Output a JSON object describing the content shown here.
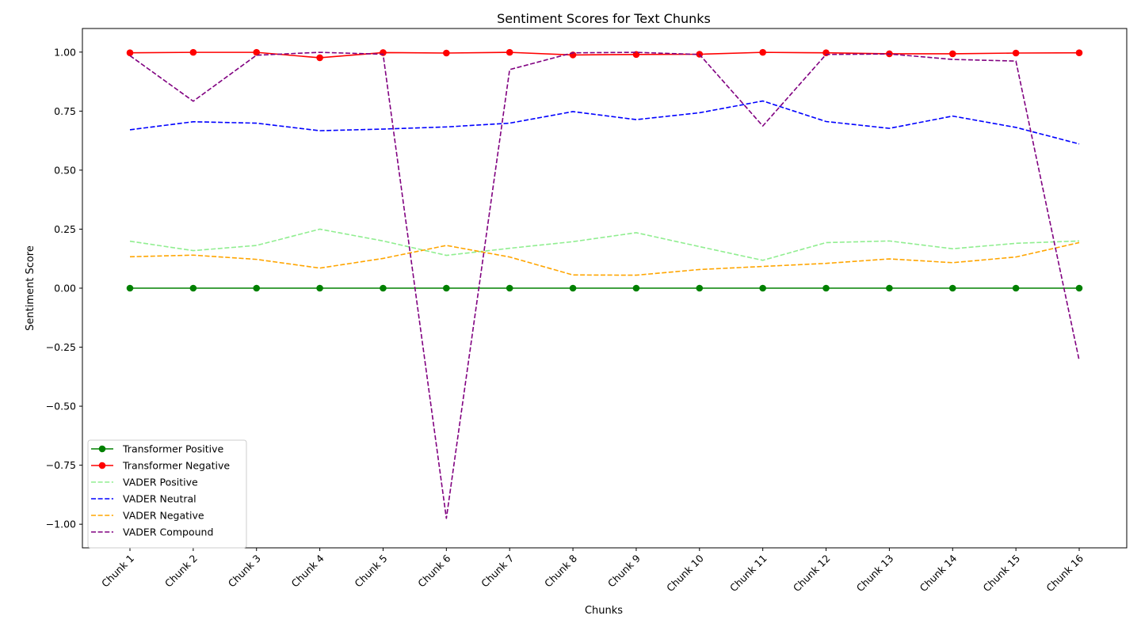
{
  "chart_data": {
    "type": "line",
    "title": "Sentiment Scores for Text Chunks",
    "xlabel": "Chunks",
    "ylabel": "Sentiment Score",
    "categories": [
      "Chunk 1",
      "Chunk 2",
      "Chunk 3",
      "Chunk 4",
      "Chunk 5",
      "Chunk 6",
      "Chunk 7",
      "Chunk 8",
      "Chunk 9",
      "Chunk 10",
      "Chunk 11",
      "Chunk 12",
      "Chunk 13",
      "Chunk 14",
      "Chunk 15",
      "Chunk 16"
    ],
    "ylim": [
      -1.1,
      1.1
    ],
    "yticks": [
      -1.0,
      -0.75,
      -0.5,
      -0.25,
      0.0,
      0.25,
      0.5,
      0.75,
      1.0
    ],
    "ytick_labels": [
      "−1.00",
      "−0.75",
      "−0.50",
      "−0.25",
      "0.00",
      "0.25",
      "0.50",
      "0.75",
      "1.00"
    ],
    "grid": false,
    "legend_position": "lower-left",
    "series": [
      {
        "name": "Transformer Positive",
        "color": "#008000",
        "style": "solid",
        "marker": true,
        "values": [
          0.0,
          0.0,
          0.0,
          0.0,
          0.0,
          0.0,
          0.0,
          0.0,
          0.0,
          0.0,
          0.0,
          0.0,
          0.0,
          0.0,
          0.0,
          0.0
        ]
      },
      {
        "name": "Transformer Negative",
        "color": "#ff0000",
        "style": "solid",
        "marker": true,
        "values": [
          0.997,
          0.999,
          0.999,
          0.976,
          0.998,
          0.996,
          0.999,
          0.988,
          0.99,
          0.991,
          0.999,
          0.997,
          0.993,
          0.993,
          0.996,
          0.997
        ]
      },
      {
        "name": "VADER Positive",
        "color": "#90ee90",
        "style": "dashed",
        "marker": false,
        "values": [
          0.199,
          0.159,
          0.181,
          0.25,
          0.2,
          0.139,
          0.169,
          0.197,
          0.235,
          0.176,
          0.118,
          0.193,
          0.2,
          0.167,
          0.19,
          0.2
        ]
      },
      {
        "name": "VADER Neutral",
        "color": "#0000ff",
        "style": "dashed",
        "marker": false,
        "values": [
          0.671,
          0.705,
          0.699,
          0.667,
          0.674,
          0.683,
          0.699,
          0.748,
          0.714,
          0.743,
          0.793,
          0.706,
          0.677,
          0.729,
          0.681,
          0.611
        ]
      },
      {
        "name": "VADER Negative",
        "color": "#ffa500",
        "style": "dashed",
        "marker": false,
        "values": [
          0.133,
          0.14,
          0.122,
          0.085,
          0.126,
          0.181,
          0.132,
          0.056,
          0.055,
          0.079,
          0.092,
          0.105,
          0.124,
          0.108,
          0.132,
          0.193
        ]
      },
      {
        "name": "VADER Compound",
        "color": "#800080",
        "style": "dashed",
        "marker": false,
        "values": [
          0.985,
          0.792,
          0.987,
          0.999,
          0.991,
          -0.975,
          0.926,
          0.997,
          0.999,
          0.99,
          0.687,
          0.99,
          0.992,
          0.969,
          0.962,
          -0.306
        ]
      }
    ]
  }
}
